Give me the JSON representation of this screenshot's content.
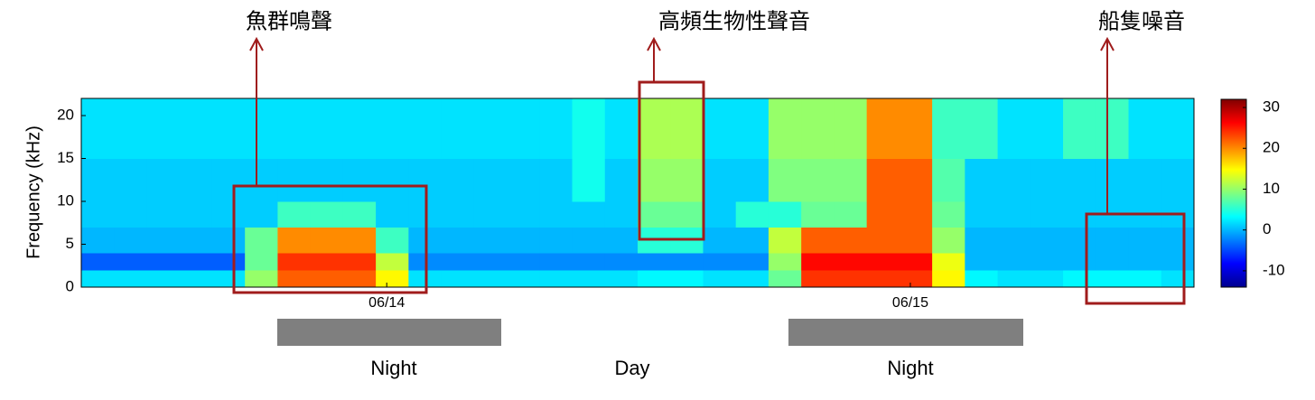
{
  "chart_data": {
    "type": "heatmap",
    "ylabel": "Frequency (kHz)",
    "xlim": [
      -14,
      37
    ],
    "xticks": [
      {
        "value": 0,
        "label": "06/14"
      },
      {
        "value": 24,
        "label": "06/15"
      }
    ],
    "ylim": [
      0,
      22
    ],
    "yticks": [
      0,
      5,
      10,
      15,
      20
    ],
    "clim": [
      -14,
      32
    ],
    "cticks": [
      -10,
      0,
      10,
      20,
      30
    ],
    "colormap": "jet",
    "x": [
      -14,
      -12.5,
      -11,
      -9.5,
      -8,
      -6.5,
      -5,
      -3.5,
      -2,
      -0.5,
      1,
      2.5,
      4,
      5.5,
      7,
      8.5,
      10,
      11.5,
      13,
      14.5,
      16,
      17.5,
      19,
      20.5,
      22,
      23.5,
      25,
      26.5,
      28,
      29.5,
      31,
      32.5,
      34,
      35.5
    ],
    "ybins": [
      0,
      2,
      4,
      7,
      10,
      15,
      22
    ],
    "z": [
      [
        2,
        2,
        2,
        2,
        2,
        10,
        22,
        22,
        22,
        15,
        2,
        2,
        2,
        2,
        2,
        2,
        2,
        3,
        3,
        2,
        2,
        8,
        24,
        24,
        24,
        24,
        15,
        3,
        2,
        2,
        3,
        3,
        3,
        2
      ],
      [
        -4,
        -4,
        -4,
        -4,
        -4,
        8,
        24,
        24,
        24,
        12,
        -2,
        -2,
        -2,
        -2,
        -2,
        -2,
        -2,
        -2,
        -2,
        -2,
        -2,
        10,
        26,
        26,
        26,
        26,
        14,
        0,
        0,
        0,
        0,
        0,
        0,
        0
      ],
      [
        0,
        0,
        0,
        0,
        0,
        8,
        20,
        20,
        20,
        6,
        0,
        0,
        0,
        0,
        0,
        0,
        0,
        5,
        5,
        0,
        0,
        12,
        22,
        22,
        22,
        22,
        10,
        0,
        0,
        0,
        0,
        0,
        0,
        0
      ],
      [
        1,
        1,
        1,
        1,
        1,
        1,
        6,
        6,
        6,
        1,
        1,
        1,
        1,
        1,
        1,
        1,
        1,
        8,
        8,
        1,
        5,
        5,
        8,
        8,
        22,
        22,
        8,
        1,
        1,
        1,
        1,
        1,
        1,
        1
      ],
      [
        1,
        1,
        1,
        1,
        1,
        1,
        1,
        1,
        1,
        1,
        1,
        1,
        1,
        1,
        1,
        4,
        1,
        10,
        10,
        1,
        1,
        9,
        9,
        9,
        22,
        22,
        7,
        1,
        1,
        1,
        1,
        1,
        1,
        1
      ],
      [
        2,
        2,
        2,
        2,
        2,
        2,
        2,
        2,
        2,
        2,
        2,
        2,
        2,
        2,
        2,
        4,
        2,
        11,
        11,
        2,
        2,
        10,
        10,
        10,
        20,
        20,
        6,
        6,
        2,
        2,
        6,
        6,
        2,
        2
      ]
    ],
    "annotations": [
      "魚群鳴聲",
      "高頻生物性聲音",
      "船隻噪音"
    ],
    "periods": [
      "Night",
      "Day",
      "Night"
    ]
  }
}
